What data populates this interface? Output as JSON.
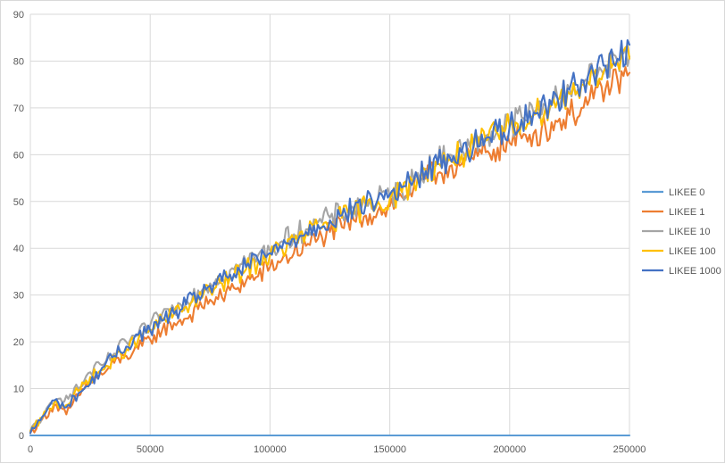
{
  "chart_data": {
    "type": "line",
    "title": "",
    "xlabel": "",
    "ylabel": "",
    "xlim": [
      0,
      250000
    ],
    "ylim": [
      0,
      90
    ],
    "x_ticks": [
      0,
      50000,
      100000,
      150000,
      200000,
      250000
    ],
    "x_tick_labels": [
      "0",
      "50000",
      "100000",
      "150000",
      "200000",
      "250000"
    ],
    "y_ticks": [
      0,
      10,
      20,
      30,
      40,
      50,
      60,
      70,
      80,
      90
    ],
    "y_tick_labels": [
      "0",
      "10",
      "20",
      "30",
      "40",
      "50",
      "60",
      "70",
      "80",
      "90"
    ],
    "grid": true,
    "legend_position": "right",
    "series": [
      {
        "name": "LIKEE 0",
        "color": "#5b9bd5",
        "x": [
          0,
          25000,
          50000,
          75000,
          100000,
          125000,
          150000,
          175000,
          200000,
          225000,
          250000
        ],
        "y": [
          0,
          0,
          0,
          0,
          0,
          0,
          0,
          0,
          0,
          0,
          0
        ]
      },
      {
        "name": "LIKEE 1",
        "color": "#ed7d31",
        "x": [
          0,
          5000,
          10000,
          15000,
          20000,
          25000,
          30000,
          35000,
          40000,
          45000,
          50000,
          55000,
          60000,
          65000,
          70000,
          75000,
          80000,
          85000,
          90000,
          95000,
          100000,
          105000,
          110000,
          115000,
          120000,
          125000,
          130000,
          135000,
          140000,
          145000,
          150000,
          155000,
          160000,
          165000,
          170000,
          175000,
          180000,
          185000,
          190000,
          195000,
          200000,
          205000,
          210000,
          215000,
          220000,
          225000,
          230000,
          235000,
          240000,
          245000,
          250000
        ],
        "y": [
          0.5,
          3.5,
          6.5,
          4.5,
          8.5,
          11.5,
          13.0,
          15.5,
          17.0,
          18.5,
          20.5,
          22.5,
          24.0,
          25.0,
          27.0,
          29.0,
          29.5,
          31.5,
          33.0,
          34.0,
          36.0,
          37.5,
          39.0,
          40.5,
          42.0,
          43.5,
          44.5,
          46.0,
          47.0,
          48.0,
          49.0,
          51.0,
          53.0,
          55.0,
          56.0,
          57.5,
          58.0,
          59.0,
          60.5,
          61.5,
          62.5,
          63.5,
          64.5,
          65.5,
          67.0,
          68.5,
          70.0,
          72.0,
          74.0,
          76.0,
          77.5
        ]
      },
      {
        "name": "LIKEE 10",
        "color": "#a5a5a5",
        "x": [
          0,
          5000,
          10000,
          15000,
          20000,
          25000,
          30000,
          35000,
          40000,
          45000,
          50000,
          55000,
          60000,
          65000,
          70000,
          75000,
          80000,
          85000,
          90000,
          95000,
          100000,
          105000,
          110000,
          115000,
          120000,
          125000,
          130000,
          135000,
          140000,
          145000,
          150000,
          155000,
          160000,
          165000,
          170000,
          175000,
          180000,
          185000,
          190000,
          195000,
          200000,
          205000,
          210000,
          215000,
          220000,
          225000,
          230000,
          235000,
          240000,
          245000,
          250000
        ],
        "y": [
          1.0,
          4.0,
          7.0,
          8.5,
          10.0,
          13.5,
          15.0,
          17.5,
          20.0,
          21.5,
          23.5,
          26.0,
          27.0,
          29.0,
          31.0,
          32.5,
          34.0,
          35.5,
          37.0,
          38.5,
          39.5,
          41.5,
          43.0,
          44.0,
          45.5,
          46.5,
          47.5,
          48.5,
          49.5,
          50.5,
          51.0,
          52.5,
          54.5,
          57.0,
          58.5,
          60.0,
          61.0,
          62.5,
          64.0,
          65.5,
          66.5,
          68.0,
          69.0,
          70.5,
          72.0,
          74.0,
          75.5,
          77.0,
          79.0,
          80.0,
          81.0
        ]
      },
      {
        "name": "LIKEE 100",
        "color": "#ffc000",
        "x": [
          0,
          5000,
          10000,
          15000,
          20000,
          25000,
          30000,
          35000,
          40000,
          45000,
          50000,
          55000,
          60000,
          65000,
          70000,
          75000,
          80000,
          85000,
          90000,
          95000,
          100000,
          105000,
          110000,
          115000,
          120000,
          125000,
          130000,
          135000,
          140000,
          145000,
          150000,
          155000,
          160000,
          165000,
          170000,
          175000,
          180000,
          185000,
          190000,
          195000,
          200000,
          205000,
          210000,
          215000,
          220000,
          225000,
          230000,
          235000,
          240000,
          245000,
          250000
        ],
        "y": [
          0.8,
          3.8,
          7.0,
          6.5,
          9.5,
          12.5,
          14.0,
          16.0,
          18.5,
          20.5,
          22.5,
          24.5,
          26.0,
          27.5,
          29.5,
          31.0,
          32.5,
          34.0,
          35.5,
          37.0,
          38.5,
          40.0,
          41.5,
          43.0,
          44.5,
          45.5,
          46.5,
          47.5,
          49.0,
          50.0,
          50.5,
          52.0,
          54.0,
          56.5,
          58.0,
          59.0,
          60.0,
          61.5,
          63.0,
          64.5,
          66.0,
          67.5,
          68.5,
          70.0,
          71.5,
          73.0,
          75.0,
          77.0,
          78.5,
          79.5,
          80.5
        ]
      },
      {
        "name": "LIKEE 1000",
        "color": "#4472c4",
        "x": [
          0,
          5000,
          10000,
          15000,
          20000,
          25000,
          30000,
          35000,
          40000,
          45000,
          50000,
          55000,
          60000,
          65000,
          70000,
          75000,
          80000,
          85000,
          90000,
          95000,
          100000,
          105000,
          110000,
          115000,
          120000,
          125000,
          130000,
          135000,
          140000,
          145000,
          150000,
          155000,
          160000,
          165000,
          170000,
          175000,
          180000,
          185000,
          190000,
          195000,
          200000,
          205000,
          210000,
          215000,
          220000,
          225000,
          230000,
          235000,
          240000,
          245000,
          250000
        ],
        "y": [
          0.5,
          4.0,
          7.5,
          6.0,
          9.0,
          11.0,
          14.5,
          17.0,
          19.0,
          21.5,
          22.5,
          24.5,
          26.0,
          28.0,
          30.0,
          32.0,
          33.0,
          34.5,
          36.0,
          37.5,
          39.0,
          40.0,
          42.0,
          43.5,
          45.0,
          46.0,
          47.0,
          48.5,
          49.5,
          50.5,
          51.5,
          53.0,
          54.5,
          56.5,
          58.0,
          59.5,
          60.5,
          62.0,
          63.5,
          65.0,
          66.0,
          67.5,
          69.0,
          70.5,
          72.0,
          74.0,
          76.0,
          77.5,
          79.0,
          80.5,
          83.5
        ]
      }
    ]
  }
}
